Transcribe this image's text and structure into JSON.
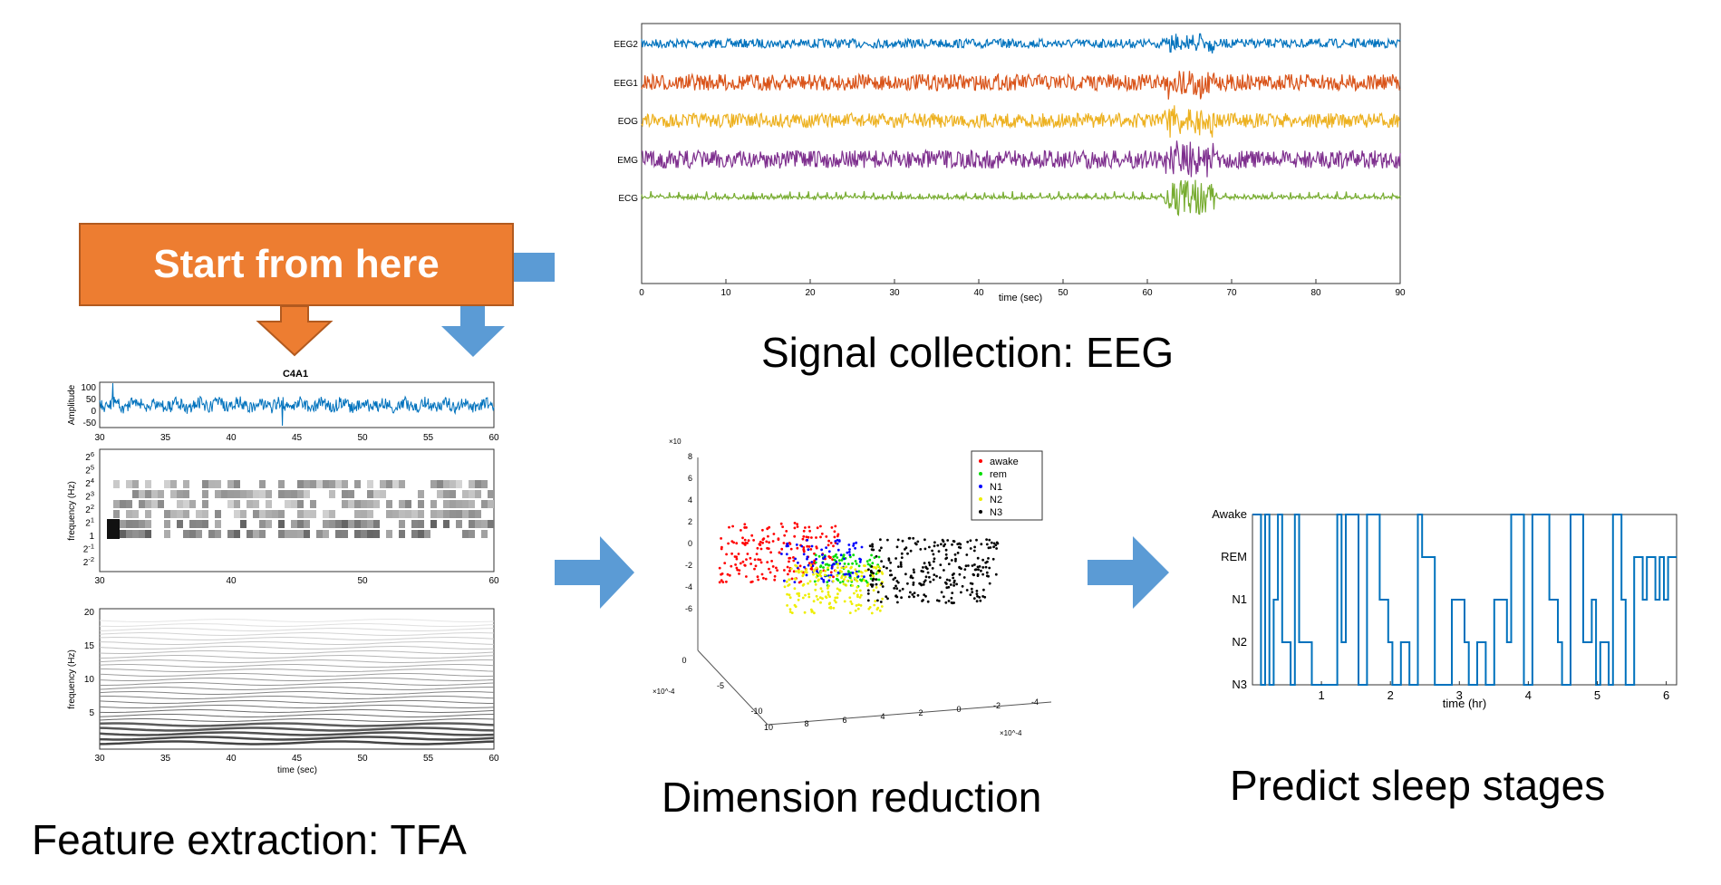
{
  "start_label": "Start from here",
  "captions": {
    "signal": "Signal collection: EEG",
    "feature": "Feature extraction: TFA",
    "dimension": "Dimension reduction",
    "predict": "Predict sleep stages"
  },
  "colors": {
    "orange": "#ed7d31",
    "arrow_blue": "#5b9bd5",
    "trace_blue": "#0072bd",
    "trace_orange": "#d95319",
    "trace_yellow": "#edb120",
    "trace_purple": "#7e2f8e",
    "trace_green": "#77ac30"
  },
  "eeg": {
    "channels": [
      "EEG2",
      "EEG1",
      "EOG",
      "EMG",
      "ECG"
    ],
    "xticks": [
      "0",
      "10",
      "20",
      "30",
      "40",
      "50",
      "60",
      "70",
      "80",
      "90"
    ],
    "xlabel": "time (sec)"
  },
  "tfa": {
    "title": "C4A1",
    "amp_ylabel": "Amplitude",
    "amp_yticks": [
      "100",
      "50",
      "0",
      "-50"
    ],
    "xticks": [
      "30",
      "35",
      "40",
      "45",
      "50",
      "55",
      "60"
    ],
    "tf_xticks": [
      "30",
      "40",
      "50",
      "60"
    ],
    "freq_ylabel": "frequency (Hz)",
    "log_yticks": [
      "2^6",
      "2^5",
      "2^4",
      "2^3",
      "2^2",
      "2^1",
      "1",
      "2^-1",
      "2^-2"
    ],
    "spec_yticks": [
      "20",
      "15",
      "10",
      "5"
    ],
    "xlabel": "time (sec)"
  },
  "scatter": {
    "z_exp": "×10",
    "zticks": [
      "8",
      "6",
      "4",
      "2",
      "0",
      "-2",
      "-4",
      "-6"
    ],
    "y_exp": "×10^-4",
    "yticks": [
      "0",
      "-5",
      "-10"
    ],
    "xticks": [
      "10",
      "8",
      "6",
      "4",
      "2",
      "0",
      "-2",
      "-4"
    ],
    "x_exp": "×10^-4",
    "legend": [
      {
        "label": "awake",
        "color": "#ff0000"
      },
      {
        "label": "rem",
        "color": "#00dd00"
      },
      {
        "label": "N1",
        "color": "#0000ff"
      },
      {
        "label": "N2",
        "color": "#eeee00"
      },
      {
        "label": "N3",
        "color": "#000000"
      }
    ]
  },
  "hypnogram": {
    "ylabels": [
      "Awake",
      "REM",
      "N1",
      "N2",
      "N3"
    ],
    "xticks": [
      "1",
      "2",
      "3",
      "4",
      "5",
      "6"
    ],
    "xlabel": "time (hr)"
  }
}
